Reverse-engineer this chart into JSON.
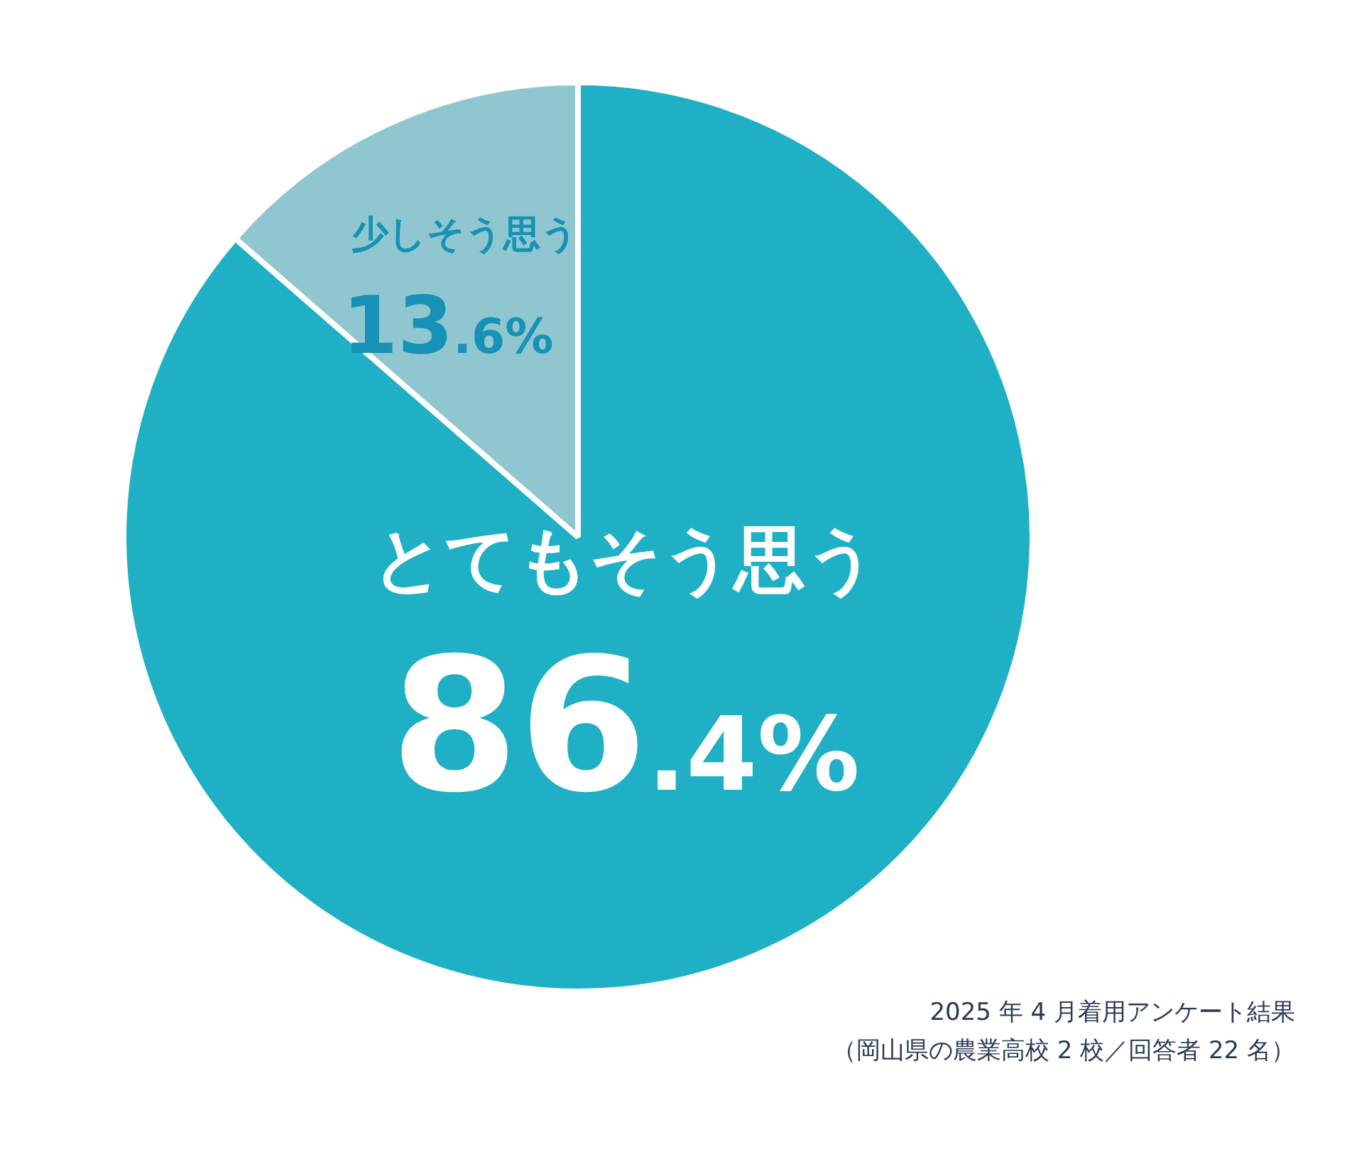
{
  "chart_data": {
    "type": "pie",
    "categories": [
      "とてもそう思う",
      "少しそう思う"
    ],
    "values": [
      86.4,
      13.6
    ],
    "value_labels": [
      "86.4%",
      "13.6%"
    ],
    "colors": [
      "#1fb0c6",
      "#8fc6cf"
    ],
    "legend": false,
    "annotations": [
      "2025 年 4 月着用アンケート結果",
      "（岡山県の農業高校 2 校／回答者 22 名）"
    ]
  }
}
